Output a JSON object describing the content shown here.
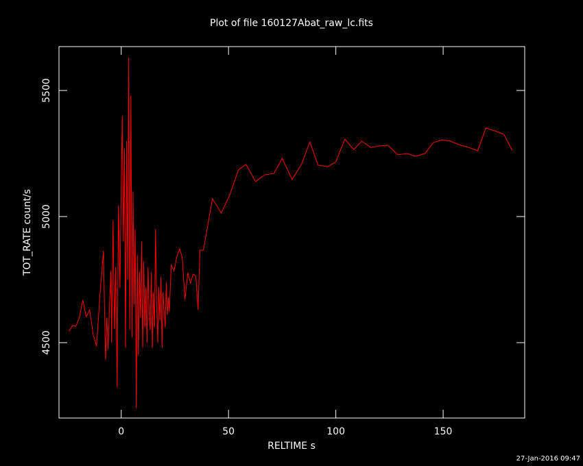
{
  "chart_data": {
    "type": "line",
    "title": "Plot of file 160127Abat_raw_lc.fits",
    "xlabel": "RELTIME  s",
    "ylabel": "TOT_RATE  count/s",
    "footer": "27-Jan-2016 09:47",
    "x": [
      -24.3,
      -22.7,
      -21.1,
      -19.5,
      -17.9,
      -16.3,
      -14.7,
      -13.1,
      -11.5,
      -9.9,
      -8.3,
      -7.3,
      -6.7,
      -6.1,
      -5.4,
      -4.8,
      -4.5,
      -3.8,
      -3.2,
      -2.6,
      -1.9,
      -1.3,
      -0.6,
      0,
      0.5,
      1,
      1.5,
      2,
      2.5,
      3,
      3.5,
      4,
      4.5,
      5,
      5.5,
      6,
      6.5,
      7,
      7.5,
      8,
      8.5,
      9,
      9.5,
      10,
      10.5,
      11,
      11.5,
      12,
      12.5,
      13,
      13.5,
      14,
      14.5,
      15,
      15.5,
      16,
      16.5,
      17,
      17.5,
      18,
      18.5,
      19,
      19.5,
      20,
      20.5,
      21,
      21.5,
      22,
      22.4,
      23.3,
      24.6,
      25.9,
      27.2,
      28.4,
      29.7,
      31,
      32.3,
      33.5,
      34.8,
      35.8,
      36.7,
      38.3,
      42.5,
      46.6,
      50.5,
      54.6,
      58.1,
      62.6,
      67,
      71.2,
      75,
      79.6,
      84,
      87.9,
      91.7,
      96.2,
      100,
      104.2,
      108.3,
      112.1,
      116.3,
      120.1,
      124.3,
      128.8,
      133.2,
      137.1,
      141.5,
      145.4,
      149.5,
      153.4,
      158.1,
      162,
      166.1,
      169.9,
      174.1,
      178.3,
      182.1
    ],
    "series": [
      {
        "name": "TOT_RATE",
        "color": "#ff0000",
        "values": [
          4546,
          4568,
          4565,
          4600,
          4668,
          4603,
          4630,
          4533,
          4486,
          4690,
          4864,
          4432,
          4600,
          4473,
          4663,
          4785,
          4500,
          4984,
          4554,
          4799,
          4323,
          5043,
          4717,
          5125,
          5400,
          4900,
          5270,
          4480,
          5300,
          4750,
          5630,
          4550,
          5480,
          4520,
          5100,
          4650,
          4950,
          4240,
          4850,
          4450,
          4780,
          4600,
          4900,
          4480,
          4820,
          4560,
          4720,
          4500,
          4800,
          4620,
          4550,
          4780,
          4480,
          4700,
          4560,
          4950,
          4650,
          4500,
          4720,
          4590,
          4760,
          4480,
          4700,
          4620,
          4560,
          4740,
          4610,
          4680,
          4622,
          4807,
          4785,
          4840,
          4872,
          4840,
          4671,
          4777,
          4736,
          4772,
          4764,
          4630,
          4867,
          4867,
          5071,
          5014,
          5084,
          5185,
          5207,
          5139,
          5166,
          5171,
          5231,
          5147,
          5207,
          5296,
          5204,
          5198,
          5217,
          5307,
          5266,
          5299,
          5274,
          5280,
          5283,
          5245,
          5250,
          5239,
          5250,
          5293,
          5304,
          5299,
          5283,
          5274,
          5261,
          5351,
          5340,
          5326,
          5264
        ]
      }
    ],
    "xlim": [
      -29,
      188
    ],
    "ylim": [
      4201,
      5674
    ],
    "xticks": [
      0,
      50,
      100,
      150
    ],
    "yticks": [
      4500,
      5000,
      5500
    ]
  }
}
